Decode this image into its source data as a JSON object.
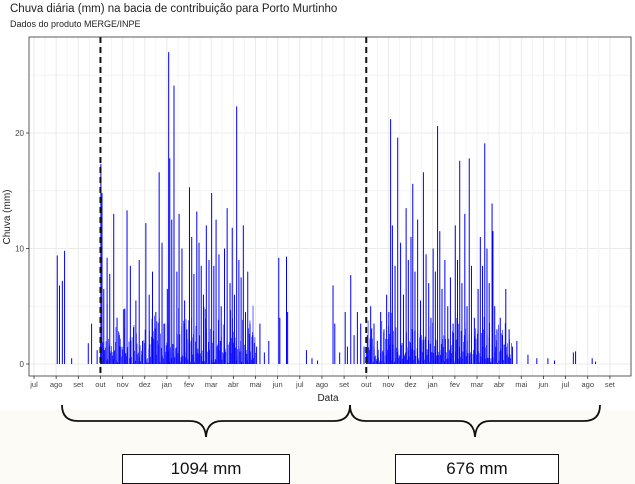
{
  "chart_data": {
    "type": "bar",
    "title": "Chuva diária (mm) na bacia de contribuição para Porto Murtinho",
    "subtitle": "Dados do produto MERGE/INPE",
    "xlabel": "Data",
    "ylabel": "Chuva (mm)",
    "ylim": [
      0,
      27.5
    ],
    "y_ticks": [
      0,
      10,
      20
    ],
    "x_tick_labels": [
      "jul",
      "ago",
      "set",
      "out",
      "nov",
      "dez",
      "jan",
      "fev",
      "mar",
      "abr",
      "mai",
      "jun",
      "jul",
      "ago",
      "set",
      "out",
      "nov",
      "dez",
      "jan",
      "fev",
      "mar",
      "abr",
      "mai",
      "jun",
      "jul",
      "ago",
      "set"
    ],
    "grid": true,
    "bar_color": "#0000ff",
    "vlines_at_month_index": [
      3,
      15
    ],
    "vline_style": "dashed",
    "spikes": [
      {
        "x": 1.05,
        "v": 9.4
      },
      {
        "x": 1.15,
        "v": 6.8
      },
      {
        "x": 1.28,
        "v": 7.2
      },
      {
        "x": 1.38,
        "v": 9.8
      },
      {
        "x": 1.7,
        "v": 0.5
      },
      {
        "x": 2.45,
        "v": 1.8
      },
      {
        "x": 2.6,
        "v": 3.5
      },
      {
        "x": 2.85,
        "v": 1.2
      },
      {
        "x": 3.02,
        "v": 17.3
      },
      {
        "x": 3.07,
        "v": 14.8
      },
      {
        "x": 3.15,
        "v": 6.5
      },
      {
        "x": 3.3,
        "v": 9.2
      },
      {
        "x": 3.42,
        "v": 7.8
      },
      {
        "x": 3.6,
        "v": 13.0
      },
      {
        "x": 3.75,
        "v": 4.0
      },
      {
        "x": 3.85,
        "v": 2.5
      },
      {
        "x": 4.1,
        "v": 4.8
      },
      {
        "x": 4.2,
        "v": 13.3
      },
      {
        "x": 4.35,
        "v": 8.5
      },
      {
        "x": 4.5,
        "v": 3.2
      },
      {
        "x": 4.6,
        "v": 5.5
      },
      {
        "x": 4.75,
        "v": 9.0
      },
      {
        "x": 4.9,
        "v": 2.0
      },
      {
        "x": 5.05,
        "v": 12.2
      },
      {
        "x": 5.2,
        "v": 6.0
      },
      {
        "x": 5.35,
        "v": 8.0
      },
      {
        "x": 5.5,
        "v": 4.5
      },
      {
        "x": 5.65,
        "v": 16.6
      },
      {
        "x": 5.78,
        "v": 10.5
      },
      {
        "x": 5.9,
        "v": 3.5
      },
      {
        "x": 6.02,
        "v": 6.5
      },
      {
        "x": 6.08,
        "v": 27.0
      },
      {
        "x": 6.13,
        "v": 17.8
      },
      {
        "x": 6.22,
        "v": 12.5
      },
      {
        "x": 6.32,
        "v": 24.1
      },
      {
        "x": 6.45,
        "v": 8.0
      },
      {
        "x": 6.55,
        "v": 13.0
      },
      {
        "x": 6.68,
        "v": 10.0
      },
      {
        "x": 6.8,
        "v": 5.5
      },
      {
        "x": 6.9,
        "v": 3.0
      },
      {
        "x": 7.02,
        "v": 15.3
      },
      {
        "x": 7.12,
        "v": 11.0
      },
      {
        "x": 7.22,
        "v": 7.8
      },
      {
        "x": 7.35,
        "v": 13.2
      },
      {
        "x": 7.45,
        "v": 10.5
      },
      {
        "x": 7.55,
        "v": 8.5
      },
      {
        "x": 7.65,
        "v": 6.0
      },
      {
        "x": 7.78,
        "v": 12.0
      },
      {
        "x": 7.9,
        "v": 9.0
      },
      {
        "x": 8.02,
        "v": 14.8
      },
      {
        "x": 8.12,
        "v": 8.5
      },
      {
        "x": 8.22,
        "v": 12.5
      },
      {
        "x": 8.35,
        "v": 9.5
      },
      {
        "x": 8.45,
        "v": 5.0
      },
      {
        "x": 8.6,
        "v": 10.0
      },
      {
        "x": 8.72,
        "v": 13.5
      },
      {
        "x": 8.85,
        "v": 7.0
      },
      {
        "x": 8.95,
        "v": 11.8
      },
      {
        "x": 9.05,
        "v": 6.0
      },
      {
        "x": 9.15,
        "v": 22.3
      },
      {
        "x": 9.25,
        "v": 9.0
      },
      {
        "x": 9.35,
        "v": 7.5
      },
      {
        "x": 9.45,
        "v": 12.0
      },
      {
        "x": 9.55,
        "v": 4.5
      },
      {
        "x": 9.65,
        "v": 8.0
      },
      {
        "x": 9.75,
        "v": 3.5
      },
      {
        "x": 9.88,
        "v": 2.5
      },
      {
        "x": 10.05,
        "v": 1.5
      },
      {
        "x": 10.2,
        "v": 3.5
      },
      {
        "x": 10.4,
        "v": 1.0
      },
      {
        "x": 10.6,
        "v": 2.0
      },
      {
        "x": 11.05,
        "v": 9.2
      },
      {
        "x": 11.1,
        "v": 4.0
      },
      {
        "x": 11.4,
        "v": 9.3
      },
      {
        "x": 11.45,
        "v": 4.5
      },
      {
        "x": 12.3,
        "v": 1.2
      },
      {
        "x": 12.55,
        "v": 0.5
      },
      {
        "x": 12.8,
        "v": 0.3
      },
      {
        "x": 13.5,
        "v": 6.8
      },
      {
        "x": 13.58,
        "v": 3.5
      },
      {
        "x": 13.8,
        "v": 1.0
      },
      {
        "x": 14.05,
        "v": 4.5
      },
      {
        "x": 14.15,
        "v": 1.5
      },
      {
        "x": 14.3,
        "v": 7.7
      },
      {
        "x": 14.45,
        "v": 2.5
      },
      {
        "x": 14.6,
        "v": 4.5
      },
      {
        "x": 14.75,
        "v": 3.5
      },
      {
        "x": 14.9,
        "v": 1.5
      },
      {
        "x": 15.05,
        "v": 2.5
      },
      {
        "x": 15.2,
        "v": 5.0
      },
      {
        "x": 15.35,
        "v": 3.5
      },
      {
        "x": 15.5,
        "v": 2.0
      },
      {
        "x": 15.65,
        "v": 4.5
      },
      {
        "x": 15.8,
        "v": 3.0
      },
      {
        "x": 15.92,
        "v": 6.0
      },
      {
        "x": 16.02,
        "v": 4.5
      },
      {
        "x": 16.1,
        "v": 21.2
      },
      {
        "x": 16.18,
        "v": 12.0
      },
      {
        "x": 16.3,
        "v": 8.5
      },
      {
        "x": 16.42,
        "v": 19.6
      },
      {
        "x": 16.55,
        "v": 10.5
      },
      {
        "x": 16.68,
        "v": 6.0
      },
      {
        "x": 16.8,
        "v": 13.5
      },
      {
        "x": 16.9,
        "v": 9.0
      },
      {
        "x": 17.02,
        "v": 11.0
      },
      {
        "x": 17.1,
        "v": 15.6
      },
      {
        "x": 17.2,
        "v": 8.0
      },
      {
        "x": 17.32,
        "v": 12.5
      },
      {
        "x": 17.45,
        "v": 5.5
      },
      {
        "x": 17.58,
        "v": 16.6
      },
      {
        "x": 17.7,
        "v": 9.5
      },
      {
        "x": 17.82,
        "v": 7.0
      },
      {
        "x": 17.92,
        "v": 4.0
      },
      {
        "x": 18.02,
        "v": 10.0
      },
      {
        "x": 18.12,
        "v": 8.0
      },
      {
        "x": 18.22,
        "v": 20.6
      },
      {
        "x": 18.32,
        "v": 11.5
      },
      {
        "x": 18.42,
        "v": 6.5
      },
      {
        "x": 18.55,
        "v": 9.0
      },
      {
        "x": 18.68,
        "v": 5.0
      },
      {
        "x": 18.8,
        "v": 7.5
      },
      {
        "x": 18.92,
        "v": 3.5
      },
      {
        "x": 19.02,
        "v": 12.0
      },
      {
        "x": 19.12,
        "v": 9.0
      },
      {
        "x": 19.22,
        "v": 17.6
      },
      {
        "x": 19.32,
        "v": 7.0
      },
      {
        "x": 19.45,
        "v": 13.0
      },
      {
        "x": 19.55,
        "v": 5.0
      },
      {
        "x": 19.65,
        "v": 17.8
      },
      {
        "x": 19.75,
        "v": 8.5
      },
      {
        "x": 19.88,
        "v": 4.0
      },
      {
        "x": 20.05,
        "v": 6.5
      },
      {
        "x": 20.15,
        "v": 11.0
      },
      {
        "x": 20.25,
        "v": 8.5
      },
      {
        "x": 20.35,
        "v": 19.1
      },
      {
        "x": 20.45,
        "v": 10.0
      },
      {
        "x": 20.55,
        "v": 7.0
      },
      {
        "x": 20.68,
        "v": 13.9
      },
      {
        "x": 20.72,
        "v": 11.5
      },
      {
        "x": 20.8,
        "v": 5.0
      },
      {
        "x": 20.9,
        "v": 3.0
      },
      {
        "x": 21.05,
        "v": 4.0
      },
      {
        "x": 21.15,
        "v": 2.5
      },
      {
        "x": 21.3,
        "v": 6.5
      },
      {
        "x": 21.45,
        "v": 3.0
      },
      {
        "x": 21.6,
        "v": 1.5
      },
      {
        "x": 21.8,
        "v": 2.0
      },
      {
        "x": 22.3,
        "v": 0.8
      },
      {
        "x": 22.7,
        "v": 0.5
      },
      {
        "x": 23.2,
        "v": 0.5
      },
      {
        "x": 23.5,
        "v": 0.3
      },
      {
        "x": 24.35,
        "v": 1.0
      },
      {
        "x": 24.45,
        "v": 1.1
      },
      {
        "x": 25.2,
        "v": 0.5
      },
      {
        "x": 25.35,
        "v": 0.2
      }
    ],
    "annotations": {
      "totals": [
        "1094 mm",
        "676 mm"
      ]
    }
  }
}
